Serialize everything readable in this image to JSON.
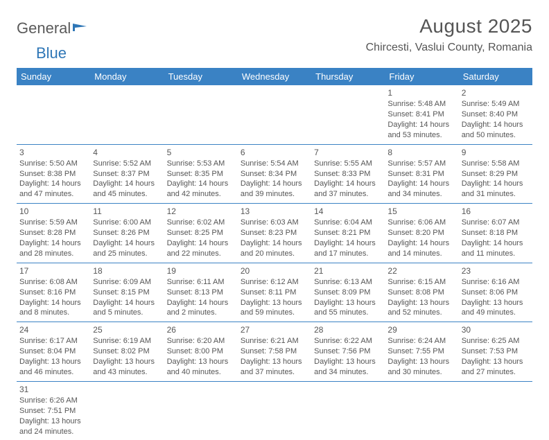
{
  "logo": {
    "general": "General",
    "blue": "Blue"
  },
  "title": "August 2025",
  "location": "Chircesti, Vaslui County, Romania",
  "colors": {
    "header_bg": "#3a82c4",
    "header_text": "#ffffff",
    "border": "#3a82c4",
    "body_text": "#555555",
    "logo_blue": "#2e76b6",
    "logo_gray": "#5a5a5a",
    "page_bg": "#ffffff"
  },
  "day_headers": [
    "Sunday",
    "Monday",
    "Tuesday",
    "Wednesday",
    "Thursday",
    "Friday",
    "Saturday"
  ],
  "weeks": [
    [
      null,
      null,
      null,
      null,
      null,
      {
        "n": "1",
        "sr": "5:48 AM",
        "ss": "8:41 PM",
        "d1": "14 hours",
        "d2": "and 53 minutes."
      },
      {
        "n": "2",
        "sr": "5:49 AM",
        "ss": "8:40 PM",
        "d1": "14 hours",
        "d2": "and 50 minutes."
      }
    ],
    [
      {
        "n": "3",
        "sr": "5:50 AM",
        "ss": "8:38 PM",
        "d1": "14 hours",
        "d2": "and 47 minutes."
      },
      {
        "n": "4",
        "sr": "5:52 AM",
        "ss": "8:37 PM",
        "d1": "14 hours",
        "d2": "and 45 minutes."
      },
      {
        "n": "5",
        "sr": "5:53 AM",
        "ss": "8:35 PM",
        "d1": "14 hours",
        "d2": "and 42 minutes."
      },
      {
        "n": "6",
        "sr": "5:54 AM",
        "ss": "8:34 PM",
        "d1": "14 hours",
        "d2": "and 39 minutes."
      },
      {
        "n": "7",
        "sr": "5:55 AM",
        "ss": "8:33 PM",
        "d1": "14 hours",
        "d2": "and 37 minutes."
      },
      {
        "n": "8",
        "sr": "5:57 AM",
        "ss": "8:31 PM",
        "d1": "14 hours",
        "d2": "and 34 minutes."
      },
      {
        "n": "9",
        "sr": "5:58 AM",
        "ss": "8:29 PM",
        "d1": "14 hours",
        "d2": "and 31 minutes."
      }
    ],
    [
      {
        "n": "10",
        "sr": "5:59 AM",
        "ss": "8:28 PM",
        "d1": "14 hours",
        "d2": "and 28 minutes."
      },
      {
        "n": "11",
        "sr": "6:00 AM",
        "ss": "8:26 PM",
        "d1": "14 hours",
        "d2": "and 25 minutes."
      },
      {
        "n": "12",
        "sr": "6:02 AM",
        "ss": "8:25 PM",
        "d1": "14 hours",
        "d2": "and 22 minutes."
      },
      {
        "n": "13",
        "sr": "6:03 AM",
        "ss": "8:23 PM",
        "d1": "14 hours",
        "d2": "and 20 minutes."
      },
      {
        "n": "14",
        "sr": "6:04 AM",
        "ss": "8:21 PM",
        "d1": "14 hours",
        "d2": "and 17 minutes."
      },
      {
        "n": "15",
        "sr": "6:06 AM",
        "ss": "8:20 PM",
        "d1": "14 hours",
        "d2": "and 14 minutes."
      },
      {
        "n": "16",
        "sr": "6:07 AM",
        "ss": "8:18 PM",
        "d1": "14 hours",
        "d2": "and 11 minutes."
      }
    ],
    [
      {
        "n": "17",
        "sr": "6:08 AM",
        "ss": "8:16 PM",
        "d1": "14 hours",
        "d2": "and 8 minutes."
      },
      {
        "n": "18",
        "sr": "6:09 AM",
        "ss": "8:15 PM",
        "d1": "14 hours",
        "d2": "and 5 minutes."
      },
      {
        "n": "19",
        "sr": "6:11 AM",
        "ss": "8:13 PM",
        "d1": "14 hours",
        "d2": "and 2 minutes."
      },
      {
        "n": "20",
        "sr": "6:12 AM",
        "ss": "8:11 PM",
        "d1": "13 hours",
        "d2": "and 59 minutes."
      },
      {
        "n": "21",
        "sr": "6:13 AM",
        "ss": "8:09 PM",
        "d1": "13 hours",
        "d2": "and 55 minutes."
      },
      {
        "n": "22",
        "sr": "6:15 AM",
        "ss": "8:08 PM",
        "d1": "13 hours",
        "d2": "and 52 minutes."
      },
      {
        "n": "23",
        "sr": "6:16 AM",
        "ss": "8:06 PM",
        "d1": "13 hours",
        "d2": "and 49 minutes."
      }
    ],
    [
      {
        "n": "24",
        "sr": "6:17 AM",
        "ss": "8:04 PM",
        "d1": "13 hours",
        "d2": "and 46 minutes."
      },
      {
        "n": "25",
        "sr": "6:19 AM",
        "ss": "8:02 PM",
        "d1": "13 hours",
        "d2": "and 43 minutes."
      },
      {
        "n": "26",
        "sr": "6:20 AM",
        "ss": "8:00 PM",
        "d1": "13 hours",
        "d2": "and 40 minutes."
      },
      {
        "n": "27",
        "sr": "6:21 AM",
        "ss": "7:58 PM",
        "d1": "13 hours",
        "d2": "and 37 minutes."
      },
      {
        "n": "28",
        "sr": "6:22 AM",
        "ss": "7:56 PM",
        "d1": "13 hours",
        "d2": "and 34 minutes."
      },
      {
        "n": "29",
        "sr": "6:24 AM",
        "ss": "7:55 PM",
        "d1": "13 hours",
        "d2": "and 30 minutes."
      },
      {
        "n": "30",
        "sr": "6:25 AM",
        "ss": "7:53 PM",
        "d1": "13 hours",
        "d2": "and 27 minutes."
      }
    ],
    [
      {
        "n": "31",
        "sr": "6:26 AM",
        "ss": "7:51 PM",
        "d1": "13 hours",
        "d2": "and 24 minutes."
      },
      null,
      null,
      null,
      null,
      null,
      null
    ]
  ],
  "labels": {
    "sunrise": "Sunrise:",
    "sunset": "Sunset:",
    "daylight": "Daylight:"
  }
}
